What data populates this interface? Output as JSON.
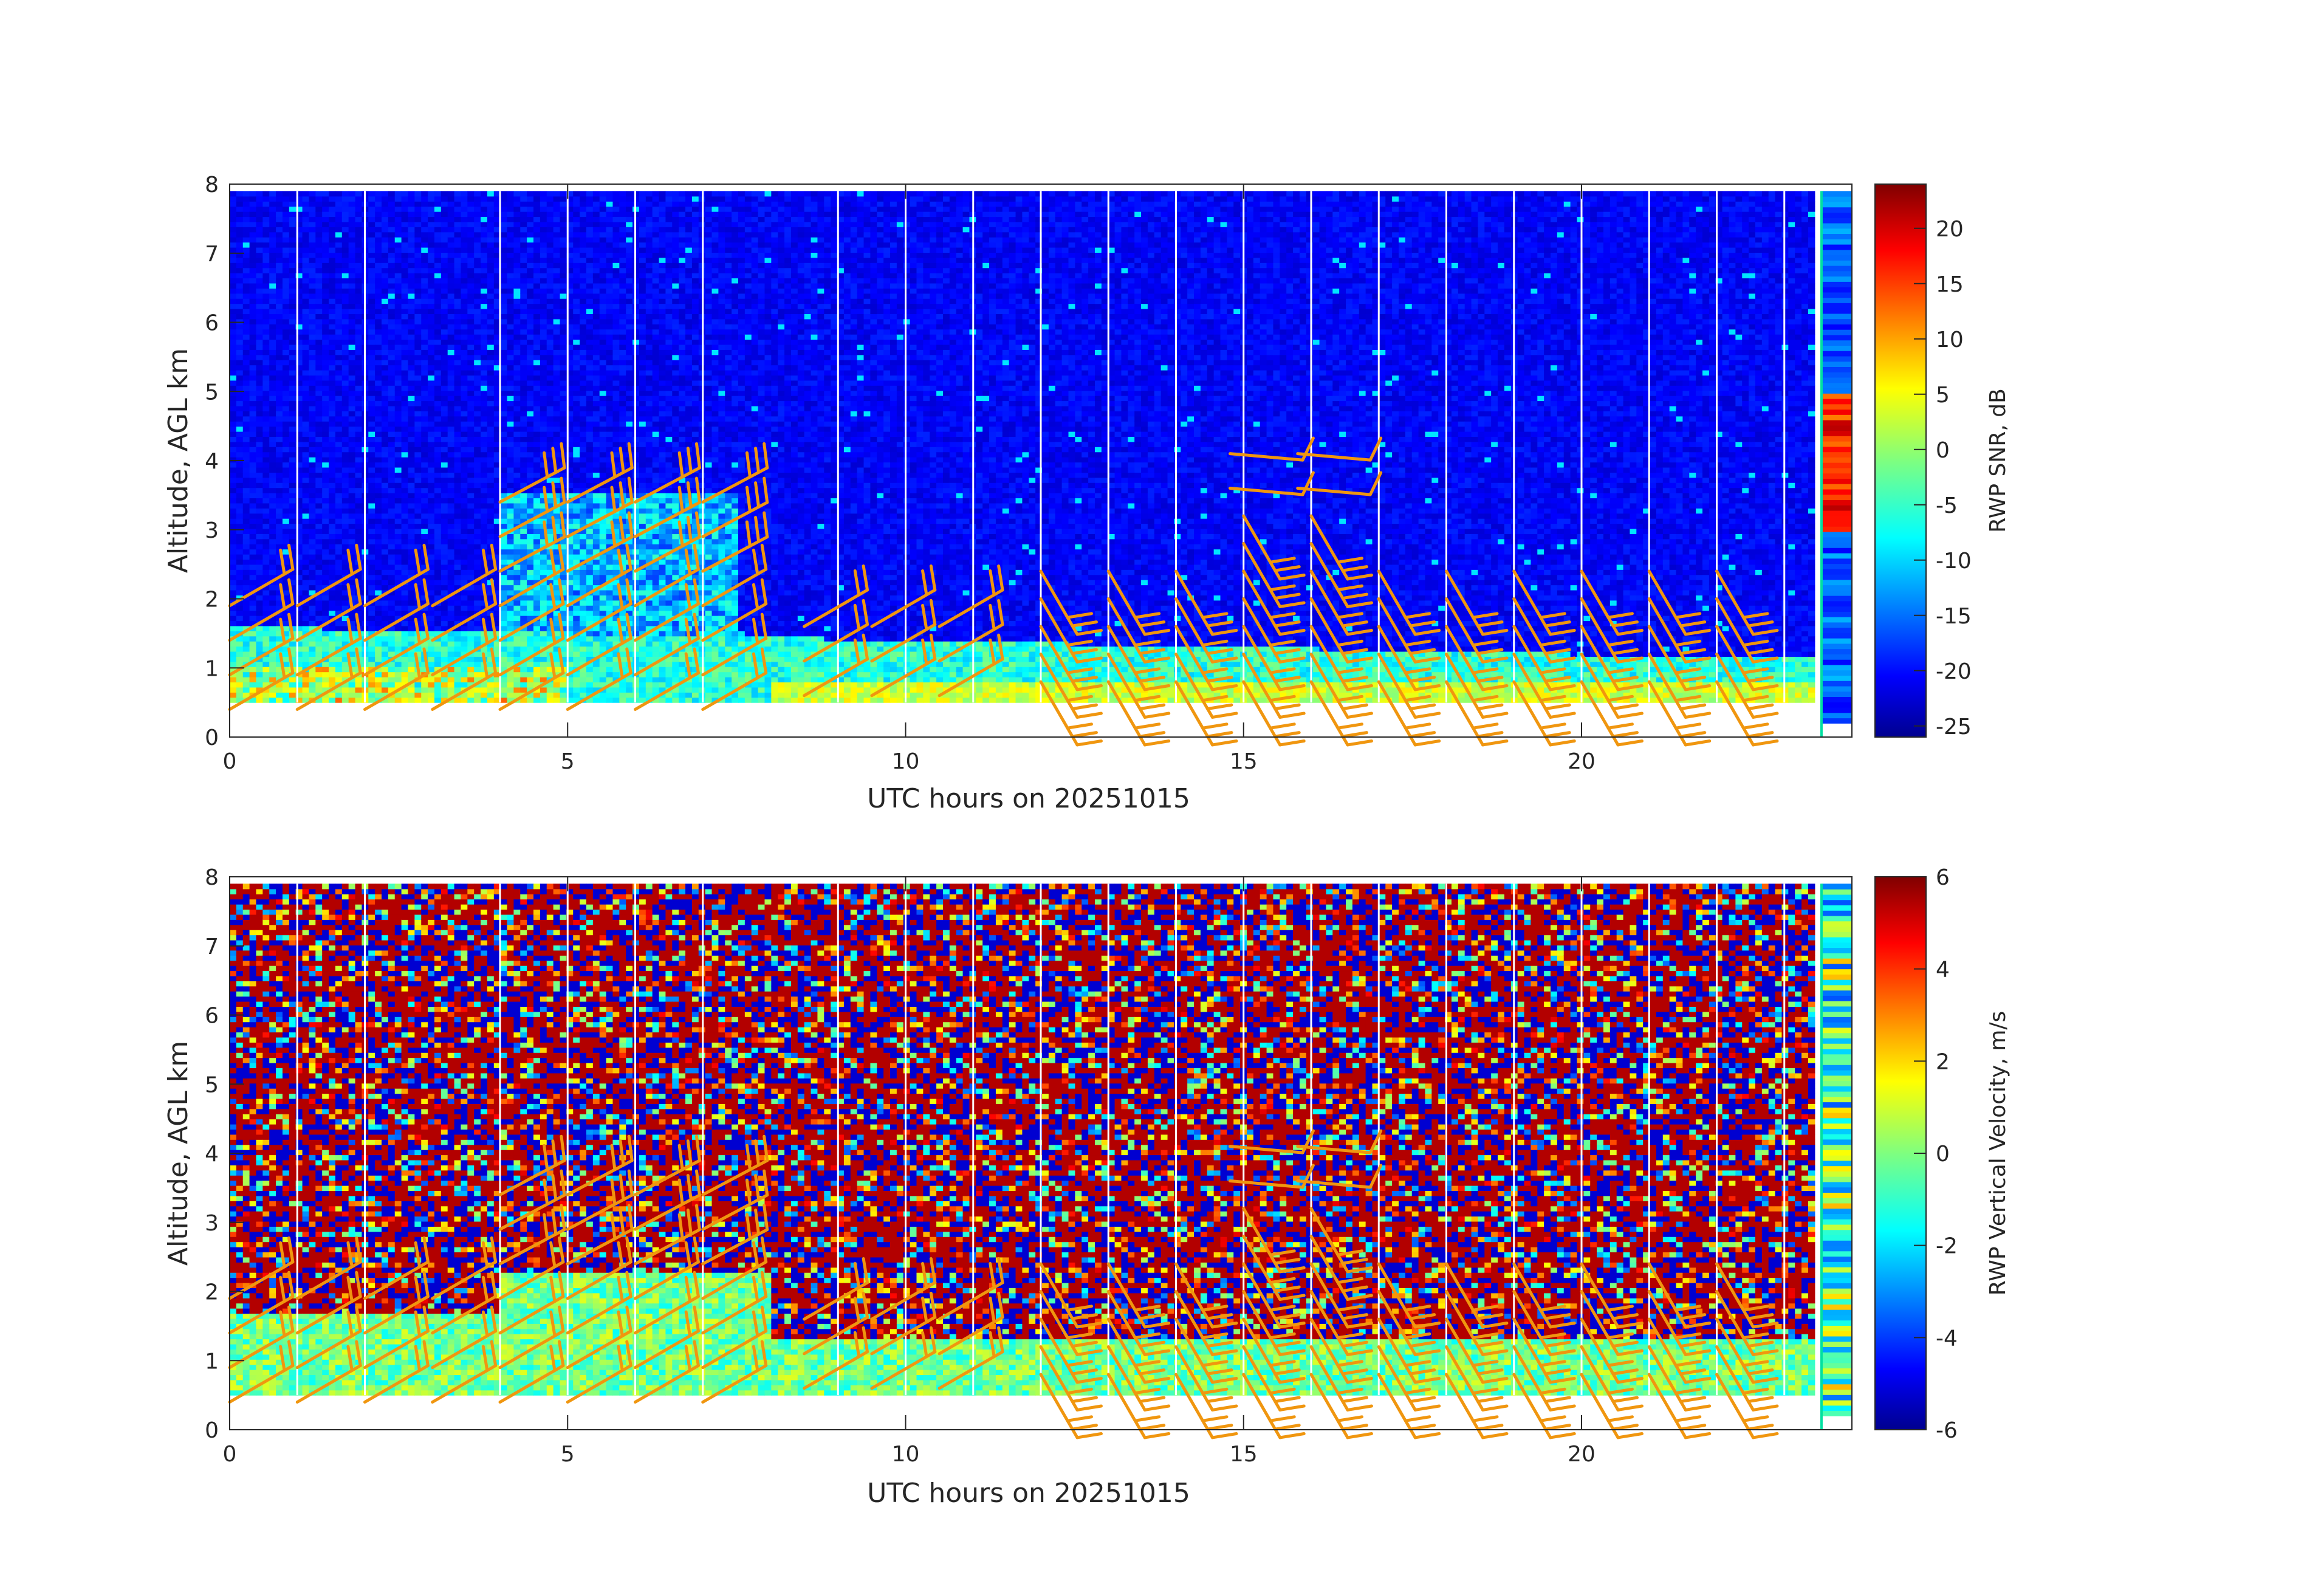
{
  "chart_data": [
    {
      "type": "heatmap",
      "title": "",
      "xlabel": "UTC hours on 20251015",
      "ylabel": "Altitude, AGL km",
      "xlim": [
        0,
        24
      ],
      "ylim": [
        0,
        8
      ],
      "xticks": [
        0,
        5,
        10,
        15,
        20
      ],
      "yticks": [
        0,
        1,
        2,
        3,
        4,
        5,
        6,
        7,
        8
      ],
      "colorbar": {
        "label": "RWP SNR, dB",
        "range": [
          -26,
          24
        ],
        "ticks": [
          20,
          15,
          10,
          5,
          0,
          -5,
          -10,
          -15,
          -20,
          -25
        ],
        "colormap": "jet"
      },
      "gap_hours": [
        1,
        2,
        4,
        5,
        6,
        7,
        9,
        10,
        11,
        12,
        13,
        14,
        15,
        16,
        17,
        18,
        19,
        20,
        21,
        22,
        23
      ],
      "data_altitude_range_km": [
        0.5,
        7.9
      ],
      "wind_barb_color": "#f0960f"
    },
    {
      "type": "heatmap",
      "title": "",
      "xlabel": "UTC hours on 20251015",
      "ylabel": "Altitude, AGL km",
      "xlim": [
        0,
        24
      ],
      "ylim": [
        0,
        8
      ],
      "xticks": [
        0,
        5,
        10,
        15,
        20
      ],
      "yticks": [
        0,
        1,
        2,
        3,
        4,
        5,
        6,
        7,
        8
      ],
      "colorbar": {
        "label": "RWP Vertical Velocity, m/s",
        "range": [
          -6,
          6
        ],
        "ticks": [
          6,
          4,
          2,
          0,
          -2,
          -4,
          -6
        ],
        "colormap": "jet"
      },
      "gap_hours": [
        1,
        2,
        4,
        5,
        6,
        7,
        9,
        10,
        11,
        12,
        13,
        14,
        15,
        16,
        17,
        18,
        19,
        20,
        21,
        22,
        23
      ],
      "data_altitude_range_km": [
        0.5,
        7.9
      ],
      "wind_barb_color": "#f0960f"
    }
  ]
}
